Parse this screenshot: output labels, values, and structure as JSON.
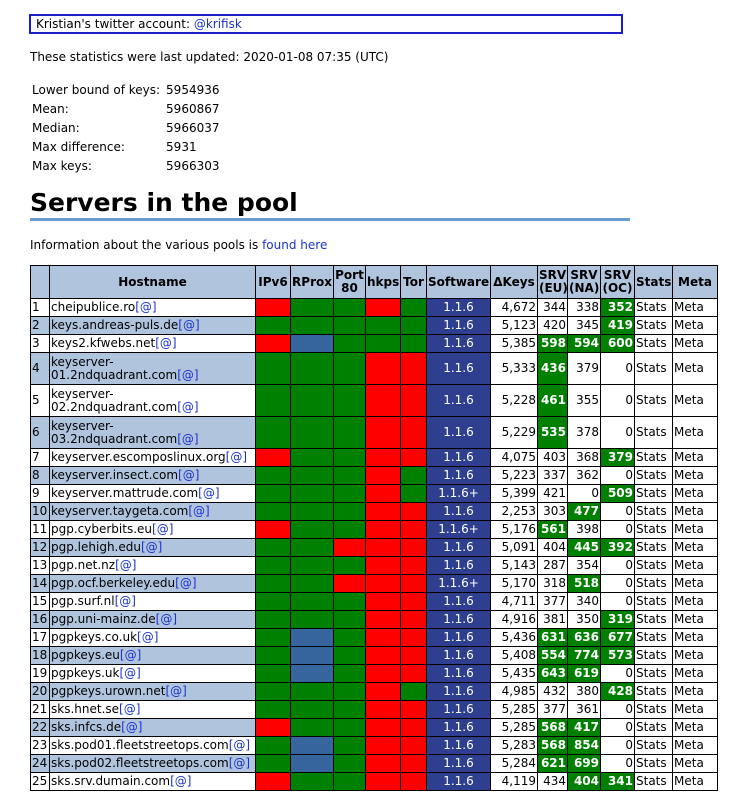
{
  "twitter": {
    "prefix": "Kristian's twitter account:",
    "handle": "@krifisk"
  },
  "updated": "These statistics were last updated: 2020-01-08 07:35 (UTC)",
  "stats": [
    {
      "label": "Lower bound of keys:",
      "value": "5954936"
    },
    {
      "label": "Mean:",
      "value": "5960867"
    },
    {
      "label": "Median:",
      "value": "5966037"
    },
    {
      "label": "Max difference:",
      "value": "5931"
    },
    {
      "label": "Max keys:",
      "value": "5966303"
    }
  ],
  "heading": "Servers in the pool",
  "info": {
    "text": "Information about the various pools is",
    "link": "found here"
  },
  "columns": [
    "",
    "Hostname",
    "IPv6",
    "RProx",
    "Port 80",
    "hkps",
    "Tor",
    "Software",
    "ΔKeys",
    "SRV (EU)",
    "SRV (NA)",
    "SRV (OC)",
    "Stats",
    "Meta"
  ],
  "link_label": "[@]",
  "colors": {
    "red": "#ff0000",
    "green": "#008000",
    "blue": "#36649c",
    "header": "#b0c4de",
    "software": "#2f3f8f"
  },
  "servers": [
    {
      "n": "1",
      "host": "cheipublice.ro",
      "ipv6": "red",
      "rprox": "green",
      "p80": "green",
      "hkps": "red",
      "tor": "green",
      "sw": "1.1.6",
      "dkeys": "4,672",
      "eu": "344",
      "na": "338",
      "oc": "352",
      "eu_g": false,
      "na_g": false,
      "oc_g": true,
      "stats": "Stats",
      "meta": "Meta"
    },
    {
      "n": "2",
      "host": "keys.andreas-puls.de",
      "ipv6": "green",
      "rprox": "green",
      "p80": "green",
      "hkps": "green",
      "tor": "green",
      "sw": "1.1.6",
      "dkeys": "5,123",
      "eu": "420",
      "na": "345",
      "oc": "419",
      "eu_g": false,
      "na_g": false,
      "oc_g": true,
      "stats": "Stats",
      "meta": "Meta"
    },
    {
      "n": "3",
      "host": "keys2.kfwebs.net",
      "ipv6": "red",
      "rprox": "blue",
      "p80": "green",
      "hkps": "green",
      "tor": "green",
      "sw": "1.1.6",
      "dkeys": "5,385",
      "eu": "598",
      "na": "594",
      "oc": "600",
      "eu_g": true,
      "na_g": true,
      "oc_g": true,
      "stats": "Stats",
      "meta": "Meta"
    },
    {
      "n": "4",
      "host": "keyserver-01.2ndquadrant.com",
      "ipv6": "green",
      "rprox": "green",
      "p80": "green",
      "hkps": "red",
      "tor": "red",
      "sw": "1.1.6",
      "dkeys": "5,333",
      "eu": "436",
      "na": "379",
      "oc": "0",
      "eu_g": true,
      "na_g": false,
      "oc_g": false,
      "stats": "Stats",
      "meta": "Meta",
      "tall": true
    },
    {
      "n": "5",
      "host": "keyserver-02.2ndquadrant.com",
      "ipv6": "green",
      "rprox": "green",
      "p80": "green",
      "hkps": "red",
      "tor": "red",
      "sw": "1.1.6",
      "dkeys": "5,228",
      "eu": "461",
      "na": "355",
      "oc": "0",
      "eu_g": true,
      "na_g": false,
      "oc_g": false,
      "stats": "Stats",
      "meta": "Meta",
      "tall": true
    },
    {
      "n": "6",
      "host": "keyserver-03.2ndquadrant.com",
      "ipv6": "green",
      "rprox": "green",
      "p80": "green",
      "hkps": "red",
      "tor": "red",
      "sw": "1.1.6",
      "dkeys": "5,229",
      "eu": "535",
      "na": "378",
      "oc": "0",
      "eu_g": true,
      "na_g": false,
      "oc_g": false,
      "stats": "Stats",
      "meta": "Meta",
      "tall": true
    },
    {
      "n": "7",
      "host": "keyserver.escomposlinux.org",
      "ipv6": "red",
      "rprox": "green",
      "p80": "green",
      "hkps": "red",
      "tor": "red",
      "sw": "1.1.6",
      "dkeys": "4,075",
      "eu": "403",
      "na": "368",
      "oc": "379",
      "eu_g": false,
      "na_g": false,
      "oc_g": true,
      "stats": "Stats",
      "meta": "Meta"
    },
    {
      "n": "8",
      "host": "keyserver.insect.com",
      "ipv6": "green",
      "rprox": "green",
      "p80": "green",
      "hkps": "red",
      "tor": "green",
      "sw": "1.1.6",
      "dkeys": "5,223",
      "eu": "337",
      "na": "362",
      "oc": "0",
      "eu_g": false,
      "na_g": false,
      "oc_g": false,
      "stats": "Stats",
      "meta": "Meta"
    },
    {
      "n": "9",
      "host": "keyserver.mattrude.com",
      "ipv6": "green",
      "rprox": "green",
      "p80": "green",
      "hkps": "red",
      "tor": "green",
      "sw": "1.1.6+",
      "dkeys": "5,399",
      "eu": "421",
      "na": "0",
      "oc": "509",
      "eu_g": false,
      "na_g": false,
      "oc_g": true,
      "stats": "Stats",
      "meta": "Meta"
    },
    {
      "n": "10",
      "host": "keyserver.taygeta.com",
      "ipv6": "green",
      "rprox": "green",
      "p80": "green",
      "hkps": "red",
      "tor": "red",
      "sw": "1.1.6",
      "dkeys": "2,253",
      "eu": "303",
      "na": "477",
      "oc": "0",
      "eu_g": false,
      "na_g": true,
      "oc_g": false,
      "stats": "Stats",
      "meta": "Meta"
    },
    {
      "n": "11",
      "host": "pgp.cyberbits.eu",
      "ipv6": "red",
      "rprox": "green",
      "p80": "green",
      "hkps": "red",
      "tor": "red",
      "sw": "1.1.6+",
      "dkeys": "5,176",
      "eu": "561",
      "na": "398",
      "oc": "0",
      "eu_g": true,
      "na_g": false,
      "oc_g": false,
      "stats": "Stats",
      "meta": "Meta"
    },
    {
      "n": "12",
      "host": "pgp.lehigh.edu",
      "ipv6": "green",
      "rprox": "green",
      "p80": "red",
      "hkps": "red",
      "tor": "red",
      "sw": "1.1.6",
      "dkeys": "5,091",
      "eu": "404",
      "na": "445",
      "oc": "392",
      "eu_g": false,
      "na_g": true,
      "oc_g": true,
      "stats": "Stats",
      "meta": "Meta"
    },
    {
      "n": "13",
      "host": "pgp.net.nz",
      "ipv6": "green",
      "rprox": "green",
      "p80": "green",
      "hkps": "red",
      "tor": "red",
      "sw": "1.1.6",
      "dkeys": "5,143",
      "eu": "287",
      "na": "354",
      "oc": "0",
      "eu_g": false,
      "na_g": false,
      "oc_g": false,
      "stats": "Stats",
      "meta": "Meta"
    },
    {
      "n": "14",
      "host": "pgp.ocf.berkeley.edu",
      "ipv6": "green",
      "rprox": "green",
      "p80": "red",
      "hkps": "red",
      "tor": "red",
      "sw": "1.1.6+",
      "dkeys": "5,170",
      "eu": "318",
      "na": "518",
      "oc": "0",
      "eu_g": false,
      "na_g": true,
      "oc_g": false,
      "stats": "Stats",
      "meta": "Meta"
    },
    {
      "n": "15",
      "host": "pgp.surf.nl",
      "ipv6": "green",
      "rprox": "green",
      "p80": "green",
      "hkps": "red",
      "tor": "red",
      "sw": "1.1.6",
      "dkeys": "4,711",
      "eu": "377",
      "na": "340",
      "oc": "0",
      "eu_g": false,
      "na_g": false,
      "oc_g": false,
      "stats": "Stats",
      "meta": "Meta"
    },
    {
      "n": "16",
      "host": "pgp.uni-mainz.de",
      "ipv6": "green",
      "rprox": "green",
      "p80": "green",
      "hkps": "red",
      "tor": "red",
      "sw": "1.1.6",
      "dkeys": "4,916",
      "eu": "381",
      "na": "350",
      "oc": "319",
      "eu_g": false,
      "na_g": false,
      "oc_g": true,
      "stats": "Stats",
      "meta": "Meta"
    },
    {
      "n": "17",
      "host": "pgpkeys.co.uk",
      "ipv6": "green",
      "rprox": "blue",
      "p80": "green",
      "hkps": "red",
      "tor": "red",
      "sw": "1.1.6",
      "dkeys": "5,436",
      "eu": "631",
      "na": "636",
      "oc": "677",
      "eu_g": true,
      "na_g": true,
      "oc_g": true,
      "stats": "Stats",
      "meta": "Meta"
    },
    {
      "n": "18",
      "host": "pgpkeys.eu",
      "ipv6": "green",
      "rprox": "blue",
      "p80": "green",
      "hkps": "red",
      "tor": "red",
      "sw": "1.1.6",
      "dkeys": "5,408",
      "eu": "554",
      "na": "774",
      "oc": "573",
      "eu_g": true,
      "na_g": true,
      "oc_g": true,
      "stats": "Stats",
      "meta": "Meta"
    },
    {
      "n": "19",
      "host": "pgpkeys.uk",
      "ipv6": "green",
      "rprox": "blue",
      "p80": "green",
      "hkps": "red",
      "tor": "red",
      "sw": "1.1.6",
      "dkeys": "5,435",
      "eu": "643",
      "na": "619",
      "oc": "0",
      "eu_g": true,
      "na_g": true,
      "oc_g": false,
      "stats": "Stats",
      "meta": "Meta"
    },
    {
      "n": "20",
      "host": "pgpkeys.urown.net",
      "ipv6": "green",
      "rprox": "green",
      "p80": "green",
      "hkps": "red",
      "tor": "green",
      "sw": "1.1.6",
      "dkeys": "4,985",
      "eu": "432",
      "na": "380",
      "oc": "428",
      "eu_g": false,
      "na_g": false,
      "oc_g": true,
      "stats": "Stats",
      "meta": "Meta"
    },
    {
      "n": "21",
      "host": "sks.hnet.se",
      "ipv6": "green",
      "rprox": "green",
      "p80": "green",
      "hkps": "red",
      "tor": "red",
      "sw": "1.1.6",
      "dkeys": "5,285",
      "eu": "377",
      "na": "361",
      "oc": "0",
      "eu_g": false,
      "na_g": false,
      "oc_g": false,
      "stats": "Stats",
      "meta": "Meta"
    },
    {
      "n": "22",
      "host": "sks.infcs.de",
      "ipv6": "red",
      "rprox": "green",
      "p80": "green",
      "hkps": "red",
      "tor": "red",
      "sw": "1.1.6",
      "dkeys": "5,285",
      "eu": "568",
      "na": "417",
      "oc": "0",
      "eu_g": true,
      "na_g": true,
      "oc_g": false,
      "stats": "Stats",
      "meta": "Meta"
    },
    {
      "n": "23",
      "host": "sks.pod01.fleetstreetops.com",
      "ipv6": "green",
      "rprox": "blue",
      "p80": "green",
      "hkps": "red",
      "tor": "red",
      "sw": "1.1.6",
      "dkeys": "5,283",
      "eu": "568",
      "na": "854",
      "oc": "0",
      "eu_g": true,
      "na_g": true,
      "oc_g": false,
      "stats": "Stats",
      "meta": "Meta"
    },
    {
      "n": "24",
      "host": "sks.pod02.fleetstreetops.com",
      "ipv6": "green",
      "rprox": "blue",
      "p80": "green",
      "hkps": "red",
      "tor": "red",
      "sw": "1.1.6",
      "dkeys": "5,284",
      "eu": "621",
      "na": "699",
      "oc": "0",
      "eu_g": true,
      "na_g": true,
      "oc_g": false,
      "stats": "Stats",
      "meta": "Meta"
    },
    {
      "n": "25",
      "host": "sks.srv.dumain.com",
      "ipv6": "red",
      "rprox": "green",
      "p80": "green",
      "hkps": "red",
      "tor": "red",
      "sw": "1.1.6",
      "dkeys": "4,119",
      "eu": "434",
      "na": "404",
      "oc": "341",
      "eu_g": false,
      "na_g": true,
      "oc_g": true,
      "stats": "Stats",
      "meta": "Meta"
    }
  ]
}
